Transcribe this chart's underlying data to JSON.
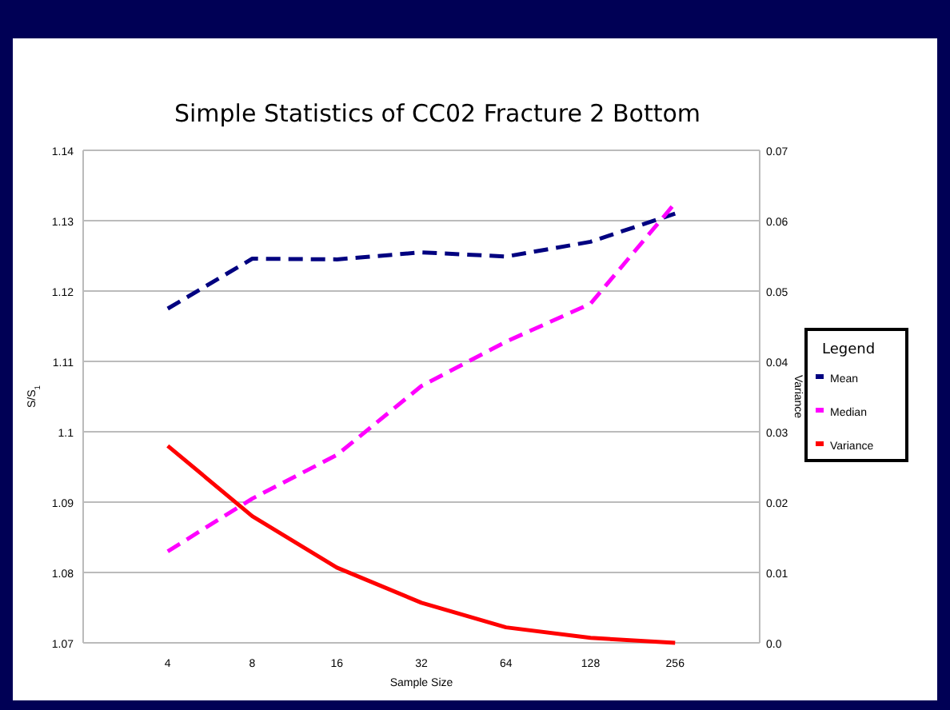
{
  "chart_data": {
    "type": "line",
    "title": "Simple Statistics of CC02 Fracture 2 Bottom",
    "xlabel": "Sample Size",
    "ylabel": "S/S$_{1}$",
    "y2label": "Variance",
    "legend_title": "Legend",
    "categories": [
      "4",
      "8",
      "16",
      "32",
      "64",
      "128",
      "256"
    ],
    "series": [
      {
        "name": "Mean",
        "color": "#000080",
        "line_style": "dashed",
        "values": [
          1.1175,
          1.1246,
          1.1245,
          1.1255,
          1.1249,
          1.127,
          1.131
        ]
      },
      {
        "name": "Median",
        "color": "#ff00ff",
        "line_style": "dashed",
        "values": [
          1.083,
          1.0905,
          1.0967,
          1.1065,
          1.1128,
          1.1182,
          1.1325
        ]
      },
      {
        "name": "Variance",
        "color": "#ff0000",
        "line_style": "solid",
        "axis": "y2",
        "values": [
          0.028,
          0.018,
          0.0107,
          0.0057,
          0.0022,
          0.0007,
          0.0
        ]
      }
    ],
    "ylim": [
      1.07,
      1.14
    ],
    "yticks": [
      1.07,
      1.08,
      1.09,
      1.1,
      1.11,
      1.12,
      1.13,
      1.14
    ],
    "y2lim": [
      0,
      0.07
    ],
    "y2ticks": [
      {
        "value": 0,
        "label": "0.0"
      },
      0.01,
      0.02,
      0.03,
      0.04,
      0.05,
      0.06,
      0.07
    ],
    "grid": "y",
    "legend": "right",
    "marker": "none"
  }
}
